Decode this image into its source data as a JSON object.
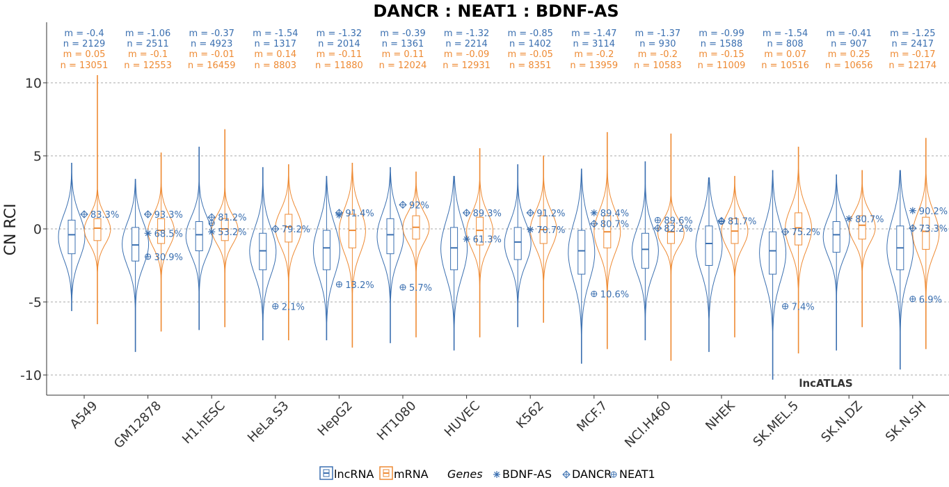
{
  "chart_data": {
    "type": "violin",
    "title": "DANCR : NEAT1 : BDNF-AS",
    "ylabel": "CN RCI",
    "xlabel": "",
    "ylim": [
      -11.2,
      13.8
    ],
    "yticks": [
      10,
      5,
      0,
      -5,
      -10
    ],
    "grid": true,
    "watermark": "lncATLAS",
    "colors": {
      "lncRNA": "#3a6fb0",
      "mRNA": "#ee8a33",
      "marker": "#3a6fb0"
    },
    "categories": [
      "A549",
      "GM12878",
      "H1.hESC",
      "HeLa.S3",
      "HepG2",
      "HT1080",
      "HUVEC",
      "K562",
      "MCF.7",
      "NCI.H460",
      "NHEK",
      "SK.MEL.5",
      "SK.N.DZ",
      "SK.N.SH"
    ],
    "stats": [
      {
        "lnc_m": "m = -0.4",
        "lnc_n": "n = 2129",
        "mrna_m": "m = 0.05",
        "mrna_n": "n = 13051"
      },
      {
        "lnc_m": "m = -1.06",
        "lnc_n": "n = 2511",
        "mrna_m": "m = -0.1",
        "mrna_n": "n = 12553"
      },
      {
        "lnc_m": "m = -0.37",
        "lnc_n": "n = 4923",
        "mrna_m": "m = -0.01",
        "mrna_n": "n = 16459"
      },
      {
        "lnc_m": "m = -1.54",
        "lnc_n": "n = 1317",
        "mrna_m": "m = 0.14",
        "mrna_n": "n = 8803"
      },
      {
        "lnc_m": "m = -1.32",
        "lnc_n": "n = 2014",
        "mrna_m": "m = -0.11",
        "mrna_n": "n = 11880"
      },
      {
        "lnc_m": "m = -0.39",
        "lnc_n": "n = 1361",
        "mrna_m": "m = 0.11",
        "mrna_n": "n = 12024"
      },
      {
        "lnc_m": "m = -1.32",
        "lnc_n": "n = 2214",
        "mrna_m": "m = -0.09",
        "mrna_n": "n = 12931"
      },
      {
        "lnc_m": "m = -0.85",
        "lnc_n": "n = 1402",
        "mrna_m": "m = -0.05",
        "mrna_n": "n = 8351"
      },
      {
        "lnc_m": "m = -1.47",
        "lnc_n": "n = 3114",
        "mrna_m": "m = -0.2",
        "mrna_n": "n = 13959"
      },
      {
        "lnc_m": "m = -1.37",
        "lnc_n": "n = 930",
        "mrna_m": "m = -0.2",
        "mrna_n": "n = 10583"
      },
      {
        "lnc_m": "m = -0.99",
        "lnc_n": "n = 1588",
        "mrna_m": "m = -0.15",
        "mrna_n": "n = 11009"
      },
      {
        "lnc_m": "m = -1.54",
        "lnc_n": "n = 808",
        "mrna_m": "m = 0.07",
        "mrna_n": "n = 10516"
      },
      {
        "lnc_m": "m = -0.41",
        "lnc_n": "n = 907",
        "mrna_m": "m = 0.25",
        "mrna_n": "n = 10656"
      },
      {
        "lnc_m": "m = -1.25",
        "lnc_n": "n = 2417",
        "mrna_m": "m = -0.17",
        "mrna_n": "n = 12174"
      }
    ],
    "lncRNA_dist": [
      {
        "min": -5.6,
        "q1": -1.7,
        "med": -0.4,
        "q3": 0.6,
        "max": 4.5
      },
      {
        "min": -8.4,
        "q1": -2.2,
        "med": -1.1,
        "q3": 0.1,
        "max": 3.4
      },
      {
        "min": -6.9,
        "q1": -1.5,
        "med": -0.4,
        "q3": 0.5,
        "max": 5.6
      },
      {
        "min": -7.6,
        "q1": -2.8,
        "med": -1.5,
        "q3": -0.3,
        "max": 4.2
      },
      {
        "min": -7.6,
        "q1": -2.8,
        "med": -1.3,
        "q3": -0.1,
        "max": 3.6
      },
      {
        "min": -7.8,
        "q1": -1.7,
        "med": -0.4,
        "q3": 0.7,
        "max": 4.2
      },
      {
        "min": -8.3,
        "q1": -2.8,
        "med": -1.3,
        "q3": 0.1,
        "max": 3.6
      },
      {
        "min": -6.7,
        "q1": -2.1,
        "med": -0.9,
        "q3": 0.1,
        "max": 4.4
      },
      {
        "min": -9.2,
        "q1": -3.1,
        "med": -1.5,
        "q3": -0.1,
        "max": 4.1
      },
      {
        "min": -7.6,
        "q1": -2.7,
        "med": -1.4,
        "q3": -0.3,
        "max": 4.6
      },
      {
        "min": -8.4,
        "q1": -2.5,
        "med": -1.0,
        "q3": 0.2,
        "max": 3.5
      },
      {
        "min": -10.3,
        "q1": -3.1,
        "med": -1.5,
        "q3": -0.2,
        "max": 4.0
      },
      {
        "min": -8.3,
        "q1": -1.6,
        "med": -0.4,
        "q3": 0.5,
        "max": 3.7
      },
      {
        "min": -9.6,
        "q1": -2.8,
        "med": -1.3,
        "q3": 0.2,
        "max": 4.0
      }
    ],
    "mRNA_dist": [
      {
        "min": -6.5,
        "q1": -0.8,
        "med": 0.05,
        "q3": 0.7,
        "max": 10.5
      },
      {
        "min": -7.0,
        "q1": -1.0,
        "med": -0.1,
        "q3": 0.7,
        "max": 5.2
      },
      {
        "min": -6.7,
        "q1": -0.8,
        "med": 0.0,
        "q3": 0.7,
        "max": 6.8
      },
      {
        "min": -7.6,
        "q1": -0.9,
        "med": 0.14,
        "q3": 1.0,
        "max": 4.4
      },
      {
        "min": -8.1,
        "q1": -1.3,
        "med": -0.1,
        "q3": 1.0,
        "max": 4.5
      },
      {
        "min": -7.4,
        "q1": -0.7,
        "med": 0.11,
        "q3": 0.9,
        "max": 3.9
      },
      {
        "min": -7.4,
        "q1": -1.1,
        "med": -0.1,
        "q3": 0.8,
        "max": 5.5
      },
      {
        "min": -6.4,
        "q1": -1.0,
        "med": -0.05,
        "q3": 0.9,
        "max": 5.0
      },
      {
        "min": -8.2,
        "q1": -1.3,
        "med": -0.2,
        "q3": 0.9,
        "max": 6.6
      },
      {
        "min": -9.0,
        "q1": -1.0,
        "med": -0.2,
        "q3": 0.4,
        "max": 6.5
      },
      {
        "min": -7.4,
        "q1": -1.0,
        "med": -0.15,
        "q3": 0.7,
        "max": 3.6
      },
      {
        "min": -8.5,
        "q1": -1.1,
        "med": 0.07,
        "q3": 1.1,
        "max": 5.6
      },
      {
        "min": -6.7,
        "q1": -0.7,
        "med": 0.25,
        "q3": 0.9,
        "max": 4.0
      },
      {
        "min": -8.2,
        "q1": -1.4,
        "med": -0.17,
        "q3": 0.8,
        "max": 6.2
      }
    ],
    "gene_markers": [
      {
        "cell": "A549",
        "gene": "DANCR",
        "value": 1.0,
        "label": "83.3%"
      },
      {
        "cell": "GM12878",
        "gene": "DANCR",
        "value": 1.0,
        "label": "93.3%"
      },
      {
        "cell": "GM12878",
        "gene": "BDNF-AS",
        "value": -0.3,
        "label": "68.5%"
      },
      {
        "cell": "GM12878",
        "gene": "NEAT1",
        "value": -1.9,
        "label": "30.9%"
      },
      {
        "cell": "H1.hESC",
        "gene": "DANCR",
        "value": 0.8,
        "label": "81.2%"
      },
      {
        "cell": "H1.hESC",
        "gene": "NEAT1",
        "value": 0.4,
        "label": ""
      },
      {
        "cell": "H1.hESC",
        "gene": "BDNF-AS",
        "value": -0.2,
        "label": "53.2%"
      },
      {
        "cell": "HeLa.S3",
        "gene": "DANCR",
        "value": 0.0,
        "label": "79.2%"
      },
      {
        "cell": "HeLa.S3",
        "gene": "NEAT1",
        "value": -5.3,
        "label": "2.1%"
      },
      {
        "cell": "HepG2",
        "gene": "DANCR",
        "value": 1.1,
        "label": "91.4%"
      },
      {
        "cell": "HepG2",
        "gene": "BDNF-AS",
        "value": 0.95,
        "label": ""
      },
      {
        "cell": "HepG2",
        "gene": "NEAT1",
        "value": -3.8,
        "label": "13.2%"
      },
      {
        "cell": "HT1080",
        "gene": "DANCR",
        "value": 1.65,
        "label": "92%"
      },
      {
        "cell": "HT1080",
        "gene": "NEAT1",
        "value": -4.0,
        "label": "5.7%"
      },
      {
        "cell": "HUVEC",
        "gene": "DANCR",
        "value": 1.1,
        "label": "89.3%"
      },
      {
        "cell": "HUVEC",
        "gene": "BDNF-AS",
        "value": -0.7,
        "label": "61.3%"
      },
      {
        "cell": "K562",
        "gene": "DANCR",
        "value": 1.1,
        "label": "91.2%"
      },
      {
        "cell": "K562",
        "gene": "BDNF-AS",
        "value": -0.05,
        "label": "70.7%"
      },
      {
        "cell": "MCF.7",
        "gene": "BDNF-AS",
        "value": 1.1,
        "label": "89.4%"
      },
      {
        "cell": "MCF.7",
        "gene": "DANCR",
        "value": 0.35,
        "label": "80.7%"
      },
      {
        "cell": "MCF.7",
        "gene": "NEAT1",
        "value": -4.45,
        "label": "10.6%"
      },
      {
        "cell": "NCI.H460",
        "gene": "NEAT1",
        "value": 0.6,
        "label": "89.6%"
      },
      {
        "cell": "NCI.H460",
        "gene": "DANCR",
        "value": 0.05,
        "label": "82.2%"
      },
      {
        "cell": "NHEK",
        "gene": "DANCR",
        "value": 0.55,
        "label": "81.7%"
      },
      {
        "cell": "NHEK",
        "gene": "NEAT1",
        "value": 0.5,
        "label": ""
      },
      {
        "cell": "SK.MEL.5",
        "gene": "DANCR",
        "value": -0.2,
        "label": "75.2%"
      },
      {
        "cell": "SK.MEL.5",
        "gene": "NEAT1",
        "value": -5.3,
        "label": "7.4%"
      },
      {
        "cell": "SK.N.DZ",
        "gene": "BDNF-AS",
        "value": 0.7,
        "label": "80.7%"
      },
      {
        "cell": "SK.N.SH",
        "gene": "BDNF-AS",
        "value": 1.25,
        "label": "90.2%"
      },
      {
        "cell": "SK.N.SH",
        "gene": "DANCR",
        "value": 0.05,
        "label": "73.3%"
      },
      {
        "cell": "SK.N.SH",
        "gene": "NEAT1",
        "value": -4.8,
        "label": "6.9%"
      }
    ],
    "legend": {
      "items": [
        {
          "label": "lncRNA",
          "color": "#3a6fb0"
        },
        {
          "label": "mRNA",
          "color": "#ee8a33"
        }
      ],
      "genes_title": "Genes",
      "genes": [
        {
          "label": "BDNF-AS",
          "symbol": "asterisk"
        },
        {
          "label": "DANCR",
          "symbol": "diamond-plus"
        },
        {
          "label": "NEAT1",
          "symbol": "circle-plus"
        }
      ],
      "placement": "bottom"
    }
  }
}
